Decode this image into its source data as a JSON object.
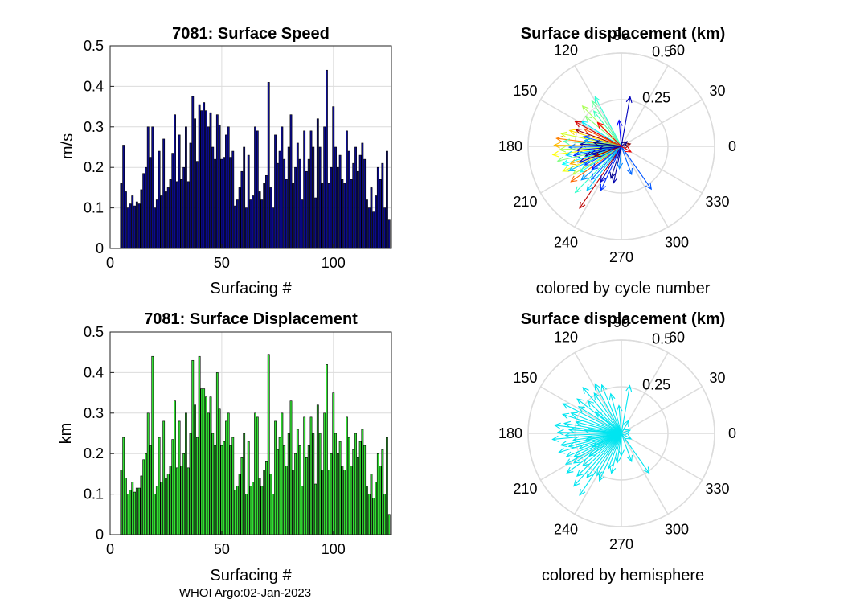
{
  "footer": "WHOI Argo:02-Jan-2023",
  "chart_data": [
    {
      "type": "bar",
      "title": "7081: Surface Speed",
      "xlabel": "Surfacing #",
      "ylabel": "m/s",
      "xlim": [
        0,
        126
      ],
      "ylim": [
        0,
        0.5
      ],
      "xticks": [
        0,
        50,
        100
      ],
      "yticks": [
        0,
        0.1,
        0.2,
        0.3,
        0.4,
        0.5
      ],
      "grid": true,
      "color": "#0a0a8c",
      "x": [
        5,
        6,
        7,
        8,
        9,
        10,
        11,
        12,
        13,
        14,
        15,
        16,
        17,
        18,
        19,
        20,
        21,
        22,
        23,
        24,
        25,
        26,
        27,
        28,
        29,
        30,
        31,
        32,
        33,
        34,
        35,
        36,
        37,
        38,
        39,
        40,
        41,
        42,
        43,
        44,
        45,
        46,
        47,
        48,
        49,
        50,
        51,
        52,
        53,
        54,
        55,
        56,
        57,
        58,
        59,
        60,
        61,
        62,
        63,
        64,
        65,
        66,
        67,
        68,
        69,
        70,
        71,
        72,
        73,
        74,
        75,
        76,
        77,
        78,
        79,
        80,
        81,
        82,
        83,
        84,
        85,
        86,
        87,
        88,
        89,
        90,
        91,
        92,
        93,
        94,
        95,
        96,
        97,
        98,
        99,
        100,
        101,
        102,
        103,
        104,
        105,
        106,
        107,
        108,
        109,
        110,
        111,
        112,
        113,
        114,
        115,
        116,
        117,
        118,
        119,
        120,
        121,
        122,
        123,
        124,
        125
      ],
      "values": [
        0.16,
        0.255,
        0.14,
        0.1,
        0.11,
        0.13,
        0.105,
        0.115,
        0.11,
        0.145,
        0.185,
        0.2,
        0.3,
        0.225,
        0.3,
        0.1,
        0.12,
        0.24,
        0.13,
        0.27,
        0.14,
        0.15,
        0.17,
        0.235,
        0.33,
        0.165,
        0.28,
        0.17,
        0.2,
        0.3,
        0.165,
        0.26,
        0.375,
        0.32,
        0.215,
        0.355,
        0.34,
        0.36,
        0.34,
        0.3,
        0.335,
        0.25,
        0.22,
        0.33,
        0.305,
        0.22,
        0.225,
        0.28,
        0.3,
        0.225,
        0.24,
        0.105,
        0.12,
        0.15,
        0.19,
        0.25,
        0.1,
        0.23,
        0.12,
        0.13,
        0.3,
        0.29,
        0.14,
        0.12,
        0.16,
        0.18,
        0.41,
        0.15,
        0.1,
        0.28,
        0.21,
        0.24,
        0.3,
        0.22,
        0.17,
        0.25,
        0.33,
        0.16,
        0.2,
        0.26,
        0.22,
        0.12,
        0.29,
        0.19,
        0.22,
        0.29,
        0.25,
        0.125,
        0.32,
        0.25,
        0.16,
        0.3,
        0.44,
        0.16,
        0.2,
        0.35,
        0.25,
        0.2,
        0.23,
        0.17,
        0.16,
        0.29,
        0.24,
        0.17,
        0.21,
        0.25,
        0.19,
        0.23,
        0.26,
        0.22,
        0.12,
        0.1,
        0.15,
        0.09,
        0.13,
        0.2,
        0.17,
        0.21,
        0.1,
        0.24,
        0.07
      ]
    },
    {
      "type": "bar",
      "title": "7081: Surface Displacement",
      "xlabel": "Surfacing #",
      "ylabel": "km",
      "xlim": [
        0,
        126
      ],
      "ylim": [
        0,
        0.5
      ],
      "xticks": [
        0,
        50,
        100
      ],
      "yticks": [
        0,
        0.1,
        0.2,
        0.3,
        0.4,
        0.5
      ],
      "grid": true,
      "color": "#33dd33",
      "x": [
        5,
        6,
        7,
        8,
        9,
        10,
        11,
        12,
        13,
        14,
        15,
        16,
        17,
        18,
        19,
        20,
        21,
        22,
        23,
        24,
        25,
        26,
        27,
        28,
        29,
        30,
        31,
        32,
        33,
        34,
        35,
        36,
        37,
        38,
        39,
        40,
        41,
        42,
        43,
        44,
        45,
        46,
        47,
        48,
        49,
        50,
        51,
        52,
        53,
        54,
        55,
        56,
        57,
        58,
        59,
        60,
        61,
        62,
        63,
        64,
        65,
        66,
        67,
        68,
        69,
        70,
        71,
        72,
        73,
        74,
        75,
        76,
        77,
        78,
        79,
        80,
        81,
        82,
        83,
        84,
        85,
        86,
        87,
        88,
        89,
        90,
        91,
        92,
        93,
        94,
        95,
        96,
        97,
        98,
        99,
        100,
        101,
        102,
        103,
        104,
        105,
        106,
        107,
        108,
        109,
        110,
        111,
        112,
        113,
        114,
        115,
        116,
        117,
        118,
        119,
        120,
        121,
        122,
        123,
        124,
        125
      ],
      "values": [
        0.16,
        0.24,
        0.14,
        0.1,
        0.11,
        0.13,
        0.105,
        0.115,
        0.115,
        0.145,
        0.185,
        0.2,
        0.3,
        0.22,
        0.44,
        0.1,
        0.12,
        0.24,
        0.13,
        0.28,
        0.14,
        0.15,
        0.17,
        0.235,
        0.33,
        0.165,
        0.28,
        0.17,
        0.2,
        0.3,
        0.165,
        0.25,
        0.43,
        0.32,
        0.24,
        0.44,
        0.36,
        0.36,
        0.34,
        0.3,
        0.34,
        0.25,
        0.22,
        0.4,
        0.31,
        0.22,
        0.23,
        0.28,
        0.3,
        0.22,
        0.24,
        0.11,
        0.12,
        0.15,
        0.19,
        0.25,
        0.1,
        0.23,
        0.12,
        0.13,
        0.3,
        0.29,
        0.14,
        0.12,
        0.16,
        0.18,
        0.445,
        0.15,
        0.1,
        0.28,
        0.21,
        0.24,
        0.3,
        0.22,
        0.17,
        0.25,
        0.33,
        0.16,
        0.2,
        0.26,
        0.22,
        0.12,
        0.29,
        0.19,
        0.22,
        0.29,
        0.25,
        0.125,
        0.32,
        0.25,
        0.16,
        0.3,
        0.42,
        0.16,
        0.2,
        0.35,
        0.25,
        0.2,
        0.23,
        0.17,
        0.16,
        0.29,
        0.24,
        0.17,
        0.21,
        0.25,
        0.19,
        0.23,
        0.26,
        0.22,
        0.12,
        0.1,
        0.15,
        0.09,
        0.13,
        0.2,
        0.17,
        0.21,
        0.1,
        0.24,
        0.05
      ]
    },
    {
      "type": "polar-arrows",
      "title": "Surface displacement (km)",
      "caption": "colored by cycle number",
      "rmax": 0.5,
      "rticks": [
        0.25,
        0.5
      ],
      "rtick_labels": [
        "0.25",
        "0.5"
      ],
      "angle_ticks": [
        0,
        30,
        60,
        90,
        120,
        150,
        180,
        210,
        240,
        270,
        300,
        330
      ],
      "angle_labels": [
        "0",
        "30",
        "60",
        "90",
        "120",
        "150",
        "180",
        "210",
        "240",
        "270",
        "300",
        "330"
      ],
      "colormap": "jet",
      "arrows": [
        {
          "angle_deg": 80,
          "r": 0.27,
          "cycle": 12
        },
        {
          "angle_deg": 95,
          "r": 0.14,
          "cycle": 20
        },
        {
          "angle_deg": 118,
          "r": 0.3,
          "cycle": 55
        },
        {
          "angle_deg": 123,
          "r": 0.29,
          "cycle": 62
        },
        {
          "angle_deg": 128,
          "r": 0.24,
          "cycle": 58
        },
        {
          "angle_deg": 134,
          "r": 0.3,
          "cycle": 70
        },
        {
          "angle_deg": 140,
          "r": 0.25,
          "cycle": 66
        },
        {
          "angle_deg": 148,
          "r": 0.25,
          "cycle": 48
        },
        {
          "angle_deg": 152,
          "r": 0.28,
          "cycle": 115
        },
        {
          "angle_deg": 155,
          "r": 0.22,
          "cycle": 100
        },
        {
          "angle_deg": 160,
          "r": 0.26,
          "cycle": 121
        },
        {
          "angle_deg": 163,
          "r": 0.29,
          "cycle": 84
        },
        {
          "angle_deg": 166,
          "r": 0.21,
          "cycle": 30
        },
        {
          "angle_deg": 168,
          "r": 0.33,
          "cycle": 75
        },
        {
          "angle_deg": 171,
          "r": 0.2,
          "cycle": 40
        },
        {
          "angle_deg": 173,
          "r": 0.35,
          "cycle": 95
        },
        {
          "angle_deg": 175,
          "r": 0.31,
          "cycle": 60
        },
        {
          "angle_deg": 177,
          "r": 0.22,
          "cycle": 10
        },
        {
          "angle_deg": 179,
          "r": 0.36,
          "cycle": 88
        },
        {
          "angle_deg": 181,
          "r": 0.28,
          "cycle": 35
        },
        {
          "angle_deg": 183,
          "r": 0.33,
          "cycle": 70
        },
        {
          "angle_deg": 185,
          "r": 0.24,
          "cycle": 18
        },
        {
          "angle_deg": 187,
          "r": 0.37,
          "cycle": 80
        },
        {
          "angle_deg": 189,
          "r": 0.3,
          "cycle": 45
        },
        {
          "angle_deg": 191,
          "r": 0.26,
          "cycle": 25
        },
        {
          "angle_deg": 193,
          "r": 0.35,
          "cycle": 65
        },
        {
          "angle_deg": 195,
          "r": 0.2,
          "cycle": 8
        },
        {
          "angle_deg": 197,
          "r": 0.33,
          "cycle": 50
        },
        {
          "angle_deg": 199,
          "r": 0.29,
          "cycle": 90
        },
        {
          "angle_deg": 201,
          "r": 0.24,
          "cycle": 15
        },
        {
          "angle_deg": 203,
          "r": 0.34,
          "cycle": 78
        },
        {
          "angle_deg": 205,
          "r": 0.31,
          "cycle": 42
        },
        {
          "angle_deg": 207,
          "r": 0.22,
          "cycle": 28
        },
        {
          "angle_deg": 210,
          "r": 0.3,
          "cycle": 72
        },
        {
          "angle_deg": 212,
          "r": 0.26,
          "cycle": 52
        },
        {
          "angle_deg": 215,
          "r": 0.33,
          "cycle": 98
        },
        {
          "angle_deg": 218,
          "r": 0.2,
          "cycle": 22
        },
        {
          "angle_deg": 220,
          "r": 0.28,
          "cycle": 38
        },
        {
          "angle_deg": 225,
          "r": 0.35,
          "cycle": 56
        },
        {
          "angle_deg": 228,
          "r": 0.24,
          "cycle": 33
        },
        {
          "angle_deg": 232,
          "r": 0.3,
          "cycle": 44
        },
        {
          "angle_deg": 236,
          "r": 0.4,
          "cycle": 118
        },
        {
          "angle_deg": 240,
          "r": 0.22,
          "cycle": 14
        },
        {
          "angle_deg": 245,
          "r": 0.26,
          "cycle": 26
        },
        {
          "angle_deg": 252,
          "r": 0.18,
          "cycle": 6
        },
        {
          "angle_deg": 258,
          "r": 0.2,
          "cycle": 10
        },
        {
          "angle_deg": 265,
          "r": 0.12,
          "cycle": 36
        },
        {
          "angle_deg": 290,
          "r": 0.16,
          "cycle": 32
        },
        {
          "angle_deg": 305,
          "r": 0.28,
          "cycle": 30
        },
        {
          "angle_deg": 330,
          "r": 0.06,
          "cycle": 112
        },
        {
          "angle_deg": 15,
          "r": 0.05,
          "cycle": 124
        },
        {
          "angle_deg": 40,
          "r": 0.04,
          "cycle": 7
        },
        {
          "angle_deg": 135,
          "r": 0.18,
          "cycle": 110
        },
        {
          "angle_deg": 200,
          "r": 0.15,
          "cycle": 122
        },
        {
          "angle_deg": 172,
          "r": 0.15,
          "cycle": 5
        },
        {
          "angle_deg": 186,
          "r": 0.12,
          "cycle": 9
        },
        {
          "angle_deg": 194,
          "r": 0.17,
          "cycle": 12
        }
      ]
    },
    {
      "type": "polar-arrows",
      "title": "Surface displacement (km)",
      "caption": "colored by hemisphere",
      "rmax": 0.5,
      "rticks": [
        0.25,
        0.5
      ],
      "rtick_labels": [
        "0.25",
        "0.5"
      ],
      "angle_ticks": [
        0,
        30,
        60,
        90,
        120,
        150,
        180,
        210,
        240,
        270,
        300,
        330
      ],
      "angle_labels": [
        "0",
        "30",
        "60",
        "90",
        "120",
        "150",
        "180",
        "210",
        "240",
        "270",
        "300",
        "330"
      ],
      "color": "#00e5f0",
      "arrows": [
        {
          "angle_deg": 80,
          "r": 0.26
        },
        {
          "angle_deg": 95,
          "r": 0.15
        },
        {
          "angle_deg": 105,
          "r": 0.22
        },
        {
          "angle_deg": 112,
          "r": 0.28
        },
        {
          "angle_deg": 118,
          "r": 0.3
        },
        {
          "angle_deg": 124,
          "r": 0.26
        },
        {
          "angle_deg": 130,
          "r": 0.32
        },
        {
          "angle_deg": 136,
          "r": 0.25
        },
        {
          "angle_deg": 142,
          "r": 0.3
        },
        {
          "angle_deg": 148,
          "r": 0.27
        },
        {
          "angle_deg": 153,
          "r": 0.35
        },
        {
          "angle_deg": 158,
          "r": 0.29
        },
        {
          "angle_deg": 162,
          "r": 0.33
        },
        {
          "angle_deg": 166,
          "r": 0.25
        },
        {
          "angle_deg": 170,
          "r": 0.31
        },
        {
          "angle_deg": 173,
          "r": 0.36
        },
        {
          "angle_deg": 176,
          "r": 0.28
        },
        {
          "angle_deg": 179,
          "r": 0.34
        },
        {
          "angle_deg": 182,
          "r": 0.3
        },
        {
          "angle_deg": 185,
          "r": 0.37
        },
        {
          "angle_deg": 188,
          "r": 0.26
        },
        {
          "angle_deg": 191,
          "r": 0.33
        },
        {
          "angle_deg": 194,
          "r": 0.29
        },
        {
          "angle_deg": 197,
          "r": 0.35
        },
        {
          "angle_deg": 200,
          "r": 0.24
        },
        {
          "angle_deg": 203,
          "r": 0.32
        },
        {
          "angle_deg": 206,
          "r": 0.28
        },
        {
          "angle_deg": 209,
          "r": 0.34
        },
        {
          "angle_deg": 212,
          "r": 0.3
        },
        {
          "angle_deg": 216,
          "r": 0.36
        },
        {
          "angle_deg": 220,
          "r": 0.27
        },
        {
          "angle_deg": 224,
          "r": 0.33
        },
        {
          "angle_deg": 228,
          "r": 0.38
        },
        {
          "angle_deg": 232,
          "r": 0.3
        },
        {
          "angle_deg": 236,
          "r": 0.4
        },
        {
          "angle_deg": 240,
          "r": 0.26
        },
        {
          "angle_deg": 245,
          "r": 0.28
        },
        {
          "angle_deg": 250,
          "r": 0.2
        },
        {
          "angle_deg": 256,
          "r": 0.22
        },
        {
          "angle_deg": 262,
          "r": 0.16
        },
        {
          "angle_deg": 270,
          "r": 0.12
        },
        {
          "angle_deg": 290,
          "r": 0.16
        },
        {
          "angle_deg": 305,
          "r": 0.26
        },
        {
          "angle_deg": 330,
          "r": 0.06
        },
        {
          "angle_deg": 20,
          "r": 0.05
        },
        {
          "angle_deg": 60,
          "r": 0.08
        },
        {
          "angle_deg": 140,
          "r": 0.18
        },
        {
          "angle_deg": 175,
          "r": 0.2
        },
        {
          "angle_deg": 190,
          "r": 0.19
        },
        {
          "angle_deg": 205,
          "r": 0.17
        },
        {
          "angle_deg": 215,
          "r": 0.21
        }
      ]
    }
  ]
}
